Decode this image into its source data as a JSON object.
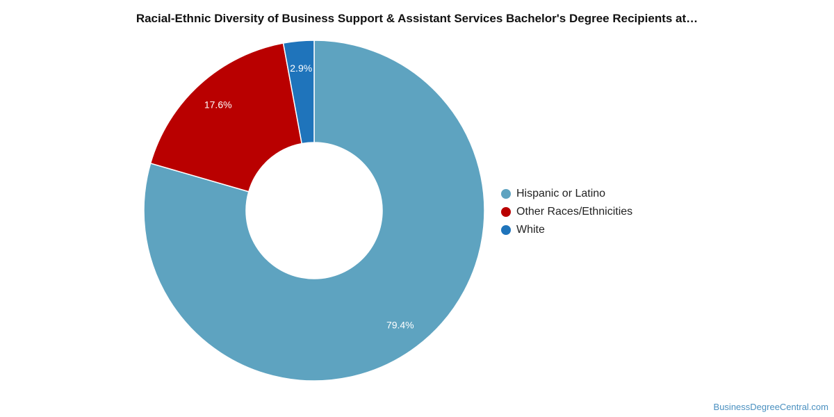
{
  "chart_data": {
    "type": "pie",
    "title": "Racial-Ethnic Diversity of Business Support & Assistant Services Bachelor's Degree Recipients at…",
    "categories": [
      "Hispanic or Latino",
      "Other Races/Ethnicities",
      "White"
    ],
    "values": [
      79.4,
      17.6,
      2.9
    ],
    "labels": [
      "79.4%",
      "17.6%",
      "2.9%"
    ],
    "colors": [
      "#5ea3c0",
      "#b90000",
      "#1f74bb"
    ],
    "donut": true,
    "legend_position": "right"
  },
  "watermark": "BusinessDegreeCentral.com"
}
